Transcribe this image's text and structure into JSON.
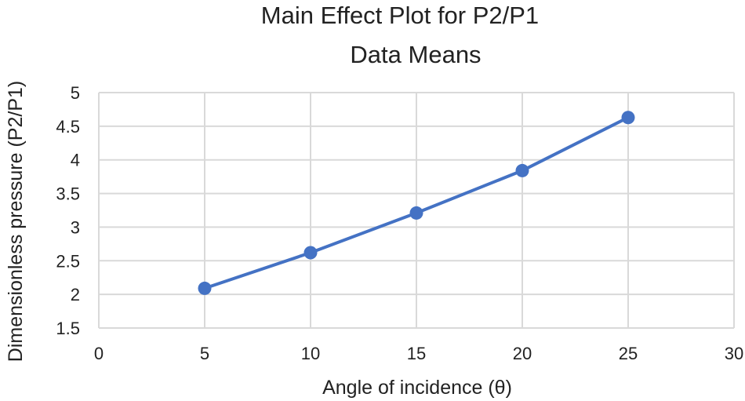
{
  "chart_data": {
    "type": "line",
    "title": "Main Effect Plot for P2/P1",
    "subtitle": "Data Means",
    "xlabel": "Angle of incidence (θ)",
    "ylabel": "Dimensionless pressure (P2/P1)",
    "xlim": [
      0,
      30
    ],
    "ylim": [
      1.5,
      5
    ],
    "xticks": [
      "0",
      "5",
      "10",
      "15",
      "20",
      "25",
      "30"
    ],
    "yticks": [
      "1.5",
      "2",
      "2.5",
      "3",
      "3.5",
      "4",
      "4.5",
      "5"
    ],
    "grid": true,
    "legend": "none",
    "series": [
      {
        "color": "#4472c4",
        "x": [
          5,
          10,
          15,
          20,
          25
        ],
        "y": [
          2.09,
          2.62,
          3.21,
          3.84,
          4.63
        ]
      }
    ]
  }
}
